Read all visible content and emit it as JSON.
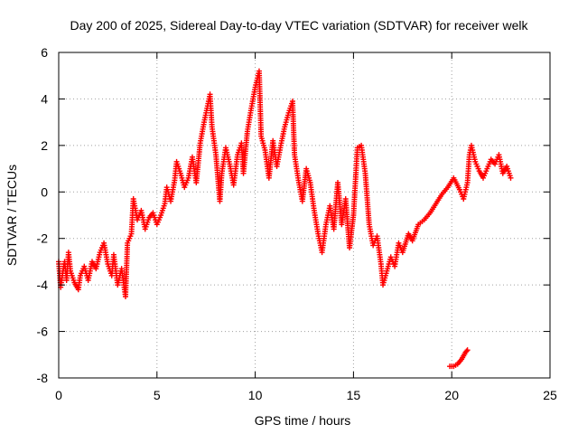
{
  "chart_data": {
    "type": "scatter",
    "title": "Day 200 of 2025, Sidereal Day-to-day VTEC variation (SDTVAR) for receiver welk",
    "xlabel": "GPS time / hours",
    "ylabel": "SDTVAR / TECUs",
    "xlim": [
      0,
      25
    ],
    "ylim": [
      -8,
      6
    ],
    "xticks": [
      0,
      5,
      10,
      15,
      20,
      25
    ],
    "yticks": [
      -8,
      -6,
      -4,
      -2,
      0,
      2,
      4,
      6
    ],
    "grid": true,
    "marker": "+",
    "series": [
      {
        "name": "SDTVAR",
        "color": "#ff0000",
        "points": [
          [
            0.0,
            -3.0
          ],
          [
            0.1,
            -4.1
          ],
          [
            0.2,
            -3.5
          ],
          [
            0.3,
            -3.0
          ],
          [
            0.4,
            -3.8
          ],
          [
            0.5,
            -2.6
          ],
          [
            0.6,
            -3.4
          ],
          [
            0.8,
            -3.9
          ],
          [
            1.0,
            -4.2
          ],
          [
            1.1,
            -3.6
          ],
          [
            1.3,
            -3.2
          ],
          [
            1.5,
            -3.8
          ],
          [
            1.7,
            -3.0
          ],
          [
            1.9,
            -3.3
          ],
          [
            2.1,
            -2.6
          ],
          [
            2.3,
            -2.2
          ],
          [
            2.5,
            -3.1
          ],
          [
            2.7,
            -3.6
          ],
          [
            2.8,
            -2.7
          ],
          [
            3.0,
            -4.0
          ],
          [
            3.2,
            -3.3
          ],
          [
            3.4,
            -4.5
          ],
          [
            3.5,
            -2.2
          ],
          [
            3.7,
            -1.8
          ],
          [
            3.8,
            -0.3
          ],
          [
            4.0,
            -1.2
          ],
          [
            4.2,
            -0.8
          ],
          [
            4.4,
            -1.6
          ],
          [
            4.6,
            -1.1
          ],
          [
            4.8,
            -0.9
          ],
          [
            5.0,
            -1.4
          ],
          [
            5.2,
            -1.0
          ],
          [
            5.4,
            -0.5
          ],
          [
            5.5,
            0.2
          ],
          [
            5.7,
            -0.4
          ],
          [
            5.9,
            0.5
          ],
          [
            6.0,
            1.3
          ],
          [
            6.2,
            0.8
          ],
          [
            6.4,
            0.2
          ],
          [
            6.6,
            0.6
          ],
          [
            6.8,
            1.5
          ],
          [
            7.0,
            0.4
          ],
          [
            7.2,
            2.1
          ],
          [
            7.4,
            3.0
          ],
          [
            7.6,
            3.8
          ],
          [
            7.7,
            4.2
          ],
          [
            7.8,
            2.8
          ],
          [
            8.0,
            1.6
          ],
          [
            8.2,
            -0.4
          ],
          [
            8.3,
            0.8
          ],
          [
            8.5,
            1.9
          ],
          [
            8.7,
            1.2
          ],
          [
            8.9,
            0.3
          ],
          [
            9.1,
            1.6
          ],
          [
            9.3,
            2.1
          ],
          [
            9.4,
            0.8
          ],
          [
            9.6,
            2.6
          ],
          [
            9.8,
            3.6
          ],
          [
            10.0,
            4.5
          ],
          [
            10.2,
            5.2
          ],
          [
            10.3,
            2.4
          ],
          [
            10.5,
            1.8
          ],
          [
            10.7,
            0.6
          ],
          [
            10.9,
            2.2
          ],
          [
            11.1,
            1.1
          ],
          [
            11.3,
            2.0
          ],
          [
            11.5,
            2.8
          ],
          [
            11.7,
            3.4
          ],
          [
            11.9,
            3.9
          ],
          [
            12.0,
            1.6
          ],
          [
            12.2,
            0.5
          ],
          [
            12.4,
            -0.4
          ],
          [
            12.6,
            1.0
          ],
          [
            12.8,
            0.4
          ],
          [
            13.0,
            -0.8
          ],
          [
            13.2,
            -1.8
          ],
          [
            13.4,
            -2.6
          ],
          [
            13.6,
            -1.4
          ],
          [
            13.8,
            -0.6
          ],
          [
            14.0,
            -1.6
          ],
          [
            14.2,
            0.4
          ],
          [
            14.4,
            -1.4
          ],
          [
            14.6,
            -0.3
          ],
          [
            14.8,
            -2.4
          ],
          [
            15.0,
            -1.0
          ],
          [
            15.2,
            1.9
          ],
          [
            15.4,
            2.0
          ],
          [
            15.6,
            0.8
          ],
          [
            15.8,
            -1.4
          ],
          [
            16.0,
            -2.3
          ],
          [
            16.2,
            -1.9
          ],
          [
            16.4,
            -3.1
          ],
          [
            16.5,
            -4.0
          ],
          [
            16.7,
            -3.4
          ],
          [
            16.9,
            -2.8
          ],
          [
            17.1,
            -3.2
          ],
          [
            17.3,
            -2.2
          ],
          [
            17.5,
            -2.6
          ],
          [
            17.8,
            -1.8
          ],
          [
            18.0,
            -2.1
          ],
          [
            18.3,
            -1.4
          ],
          [
            18.6,
            -1.2
          ],
          [
            18.9,
            -0.9
          ],
          [
            19.2,
            -0.5
          ],
          [
            19.5,
            -0.1
          ],
          [
            19.8,
            0.2
          ],
          [
            20.1,
            0.6
          ],
          [
            20.4,
            0.1
          ],
          [
            20.6,
            -0.3
          ],
          [
            20.8,
            0.4
          ],
          [
            20.9,
            1.6
          ],
          [
            21.0,
            2.0
          ],
          [
            21.2,
            1.3
          ],
          [
            21.4,
            0.9
          ],
          [
            21.6,
            0.6
          ],
          [
            21.8,
            1.0
          ],
          [
            22.0,
            1.4
          ],
          [
            22.2,
            1.2
          ],
          [
            22.4,
            1.6
          ],
          [
            22.6,
            0.8
          ],
          [
            22.8,
            1.1
          ],
          [
            23.0,
            0.6
          ],
          [
            19.9,
            -7.5
          ],
          [
            20.1,
            -7.5
          ],
          [
            20.3,
            -7.4
          ],
          [
            20.5,
            -7.2
          ],
          [
            20.7,
            -6.9
          ],
          [
            20.8,
            -6.8
          ]
        ]
      }
    ]
  }
}
